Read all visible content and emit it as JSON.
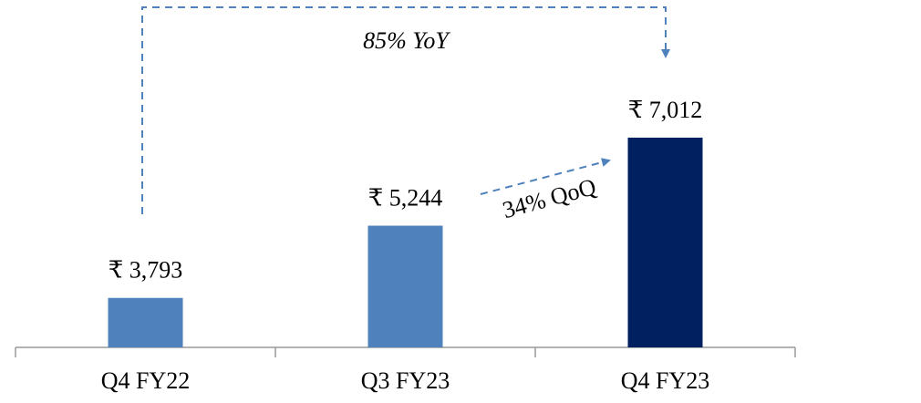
{
  "chart_data": {
    "type": "bar",
    "categories": [
      "Q4 FY22",
      "Q3 FY23",
      "Q4 FY23"
    ],
    "values": [
      3793,
      5244,
      7012
    ],
    "value_labels": [
      "₹ 3,793",
      "₹ 5,244",
      "₹ 7,012"
    ],
    "colors": [
      "#4f81bd",
      "#4f81bd",
      "#002060"
    ],
    "ylim": [
      2800,
      9300
    ],
    "annotations": [
      "85% YoY",
      "34% QoQ"
    ]
  }
}
